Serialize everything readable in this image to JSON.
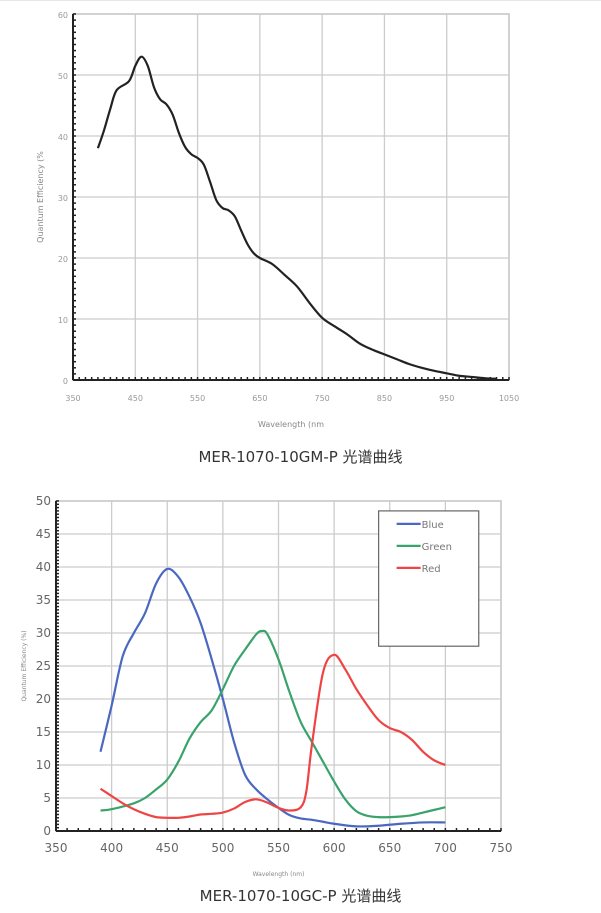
{
  "chart_data": [
    {
      "type": "line",
      "caption": "MER-1070-10GM-P 光谱曲线",
      "xlabel": "Wavelength (nm",
      "ylabel": "Quantum Efficiency (%",
      "xlim": [
        350,
        1050
      ],
      "ylim": [
        0,
        60
      ],
      "xticks": [
        350,
        450,
        550,
        650,
        750,
        850,
        950,
        1050
      ],
      "yticks": [
        0,
        10,
        20,
        30,
        40,
        50,
        60
      ],
      "grid": true,
      "series": [
        {
          "color": "#222222",
          "x": [
            390,
            400,
            410,
            420,
            440,
            450,
            460,
            470,
            480,
            490,
            500,
            510,
            520,
            530,
            540,
            550,
            560,
            570,
            580,
            590,
            600,
            610,
            620,
            630,
            640,
            650,
            670,
            690,
            710,
            730,
            750,
            770,
            790,
            810,
            830,
            850,
            870,
            890,
            910,
            930,
            950,
            970,
            990,
            1010,
            1030
          ],
          "y": [
            38,
            41,
            44.5,
            47.5,
            49,
            51.5,
            53,
            51.5,
            48,
            46,
            45.2,
            43.5,
            40.5,
            38.2,
            37,
            36.4,
            35.3,
            32.5,
            29.5,
            28.2,
            27.8,
            26.8,
            24.5,
            22.3,
            20.8,
            20,
            19,
            17.2,
            15.3,
            12.6,
            10.2,
            8.8,
            7.5,
            6,
            5,
            4.2,
            3.4,
            2.6,
            2,
            1.5,
            1.1,
            0.7,
            0.5,
            0.3,
            0.2
          ]
        }
      ]
    },
    {
      "type": "line",
      "caption": "MER-1070-10GC-P 光谱曲线",
      "xlabel": "Wavelength (nm)",
      "ylabel": "Quantum Efficiency (%)",
      "xlim": [
        350,
        750
      ],
      "ylim": [
        0,
        50
      ],
      "xticks": [
        350,
        400,
        450,
        500,
        550,
        600,
        650,
        700,
        750
      ],
      "yticks": [
        0,
        5,
        10,
        15,
        20,
        25,
        30,
        35,
        40,
        45,
        50
      ],
      "grid": true,
      "legend": "top-right",
      "series": [
        {
          "name": "Blue",
          "color": "#4a68c0",
          "x": [
            390,
            400,
            410,
            420,
            430,
            440,
            450,
            460,
            470,
            480,
            490,
            500,
            510,
            520,
            530,
            540,
            550,
            560,
            570,
            580,
            590,
            600,
            620,
            640,
            660,
            680,
            700
          ],
          "y": [
            12,
            19,
            26.5,
            30,
            33,
            37.5,
            39.7,
            38.5,
            35.5,
            31.5,
            26,
            20,
            13.5,
            8.5,
            6.3,
            4.8,
            3.5,
            2.4,
            1.9,
            1.7,
            1.4,
            1.1,
            0.7,
            0.8,
            1.1,
            1.3,
            1.3
          ]
        },
        {
          "name": "Green",
          "color": "#3aa36b",
          "x": [
            390,
            400,
            420,
            430,
            440,
            450,
            460,
            470,
            480,
            490,
            500,
            510,
            520,
            530,
            535,
            540,
            550,
            560,
            570,
            580,
            590,
            600,
            610,
            620,
            630,
            640,
            650,
            660,
            670,
            680,
            690,
            700
          ],
          "y": [
            3.1,
            3.3,
            4.2,
            5,
            6.3,
            7.8,
            10.5,
            14,
            16.5,
            18.3,
            21.5,
            25,
            27.5,
            29.8,
            30.3,
            29.8,
            26,
            21,
            16.5,
            13.5,
            10.5,
            7.5,
            4.8,
            3,
            2.3,
            2.1,
            2.1,
            2.2,
            2.4,
            2.8,
            3.2,
            3.6
          ]
        },
        {
          "name": "Red",
          "color": "#ee4444",
          "x": [
            390,
            400,
            410,
            420,
            430,
            440,
            450,
            460,
            470,
            480,
            490,
            500,
            510,
            520,
            530,
            540,
            550,
            560,
            570,
            575,
            580,
            590,
            600,
            610,
            620,
            630,
            640,
            650,
            660,
            670,
            680,
            690,
            700
          ],
          "y": [
            6.4,
            5.3,
            4.2,
            3.3,
            2.6,
            2.1,
            2,
            2,
            2.2,
            2.5,
            2.6,
            2.8,
            3.4,
            4.4,
            4.8,
            4.3,
            3.5,
            3.1,
            3.6,
            6,
            13,
            24,
            26.7,
            24.5,
            21.5,
            19,
            16.8,
            15.6,
            15,
            13.8,
            12,
            10.7,
            10
          ]
        }
      ]
    }
  ]
}
